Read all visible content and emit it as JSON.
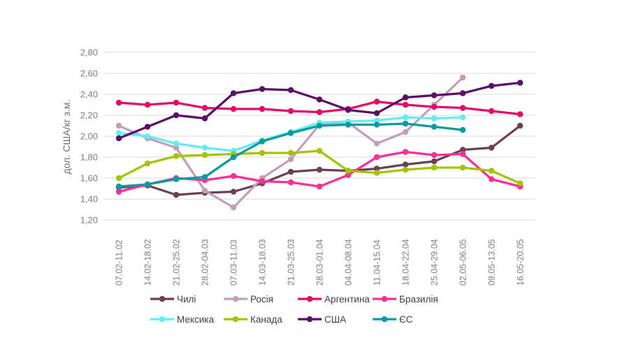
{
  "chart_data": {
    "type": "line",
    "title": "",
    "grid": true,
    "y_axis": {
      "label": "дол. США/кг з.м.",
      "min": 1.2,
      "max": 2.8,
      "step": 0.2,
      "tick_labels": [
        "1,20",
        "1,40",
        "1,60",
        "1,80",
        "2,00",
        "2,20",
        "2,40",
        "2,60",
        "2,80"
      ]
    },
    "categories": [
      "07.02-11.02",
      "14.02-18.02",
      "21.02-25.02",
      "28.02-04.03",
      "07.03-11.03",
      "14.03-18.03",
      "21.03-25.03",
      "28.03-01.04",
      "04.04-08.04",
      "11.04-15.04",
      "18.04-22.04",
      "25.04-29.04",
      "02.05-06.05",
      "09.05-13.05",
      "16.05-20.05"
    ],
    "series": [
      {
        "name": "Чилі",
        "color": "#6b4150",
        "values": [
          1.51,
          1.53,
          1.44,
          1.46,
          1.47,
          1.55,
          1.66,
          1.68,
          1.67,
          1.69,
          1.73,
          1.76,
          1.87,
          1.89,
          2.1
        ]
      },
      {
        "name": "Росія",
        "color": "#c49eb6",
        "values": [
          2.1,
          1.98,
          1.89,
          1.48,
          1.32,
          1.6,
          1.78,
          2.11,
          2.13,
          1.93,
          2.04,
          2.3,
          2.56,
          null,
          null
        ]
      },
      {
        "name": "Аргентина",
        "color": "#e50b64",
        "values": [
          2.32,
          2.3,
          2.32,
          2.27,
          2.26,
          2.26,
          2.24,
          2.23,
          2.26,
          2.33,
          2.3,
          2.28,
          2.27,
          2.24,
          2.21
        ]
      },
      {
        "name": "Бразилія",
        "color": "#ff2f96",
        "values": [
          1.47,
          1.54,
          1.6,
          1.58,
          1.62,
          1.57,
          1.56,
          1.52,
          1.63,
          1.8,
          1.85,
          1.82,
          1.83,
          1.59,
          1.52
        ]
      },
      {
        "name": "Мексика",
        "color": "#63edf3",
        "values": [
          2.03,
          2.0,
          1.93,
          1.89,
          1.86,
          1.96,
          2.04,
          2.13,
          2.14,
          2.15,
          2.18,
          2.17,
          2.18,
          null,
          null
        ]
      },
      {
        "name": "Канада",
        "color": "#a3c400",
        "values": [
          1.6,
          1.74,
          1.81,
          1.82,
          1.83,
          1.84,
          1.84,
          1.86,
          1.67,
          1.65,
          1.68,
          1.7,
          1.7,
          1.67,
          1.55
        ]
      },
      {
        "name": "США",
        "color": "#5a0f68",
        "values": [
          1.98,
          2.09,
          2.2,
          2.17,
          2.41,
          2.45,
          2.44,
          2.35,
          2.25,
          2.22,
          2.37,
          2.39,
          2.41,
          2.48,
          2.51
        ]
      },
      {
        "name": "ЄС",
        "color": "#0b9aa0",
        "values": [
          1.52,
          1.54,
          1.59,
          1.61,
          1.8,
          1.95,
          2.03,
          2.1,
          2.11,
          2.11,
          2.12,
          2.09,
          2.06,
          null,
          null
        ]
      }
    ],
    "legend": {
      "position": "bottom",
      "rows": [
        [
          "Чилі",
          "Росія",
          "Аргентина",
          "Бразилія"
        ],
        [
          "Мексика",
          "Канада",
          "США",
          "ЄС"
        ]
      ]
    }
  }
}
